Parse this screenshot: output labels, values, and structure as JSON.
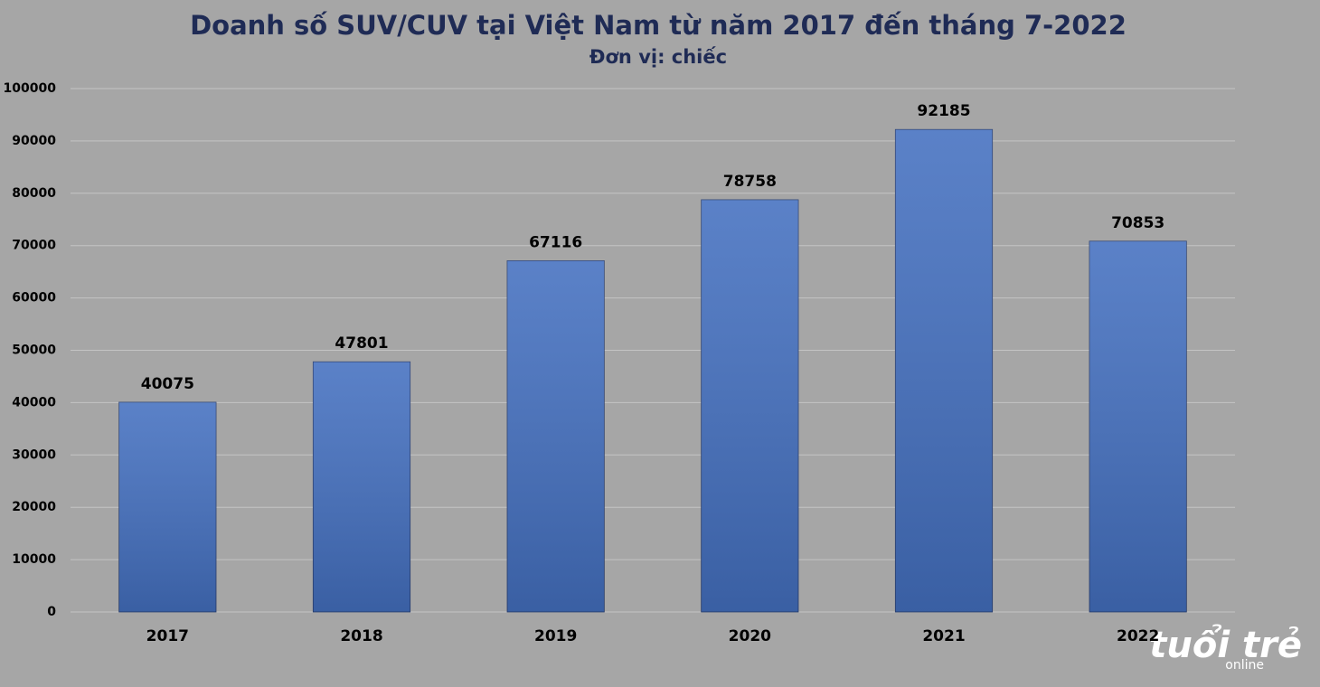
{
  "chart_data": {
    "type": "bar",
    "title": "Doanh số SUV/CUV tại Việt Nam từ năm 2017 đến tháng 7-2022",
    "subtitle": "Đơn vị: chiếc",
    "categories": [
      "2017",
      "2018",
      "2019",
      "2020",
      "2021",
      "2022"
    ],
    "values": [
      40075,
      47801,
      67116,
      78758,
      92185,
      70853
    ],
    "color": "#4470c0",
    "ylim": [
      0,
      100000
    ],
    "yticks": [
      0,
      10000,
      20000,
      30000,
      40000,
      50000,
      60000,
      70000,
      80000,
      90000,
      100000
    ],
    "grid": true,
    "logo": "tuổi trẻ",
    "logo_sub": "online"
  }
}
